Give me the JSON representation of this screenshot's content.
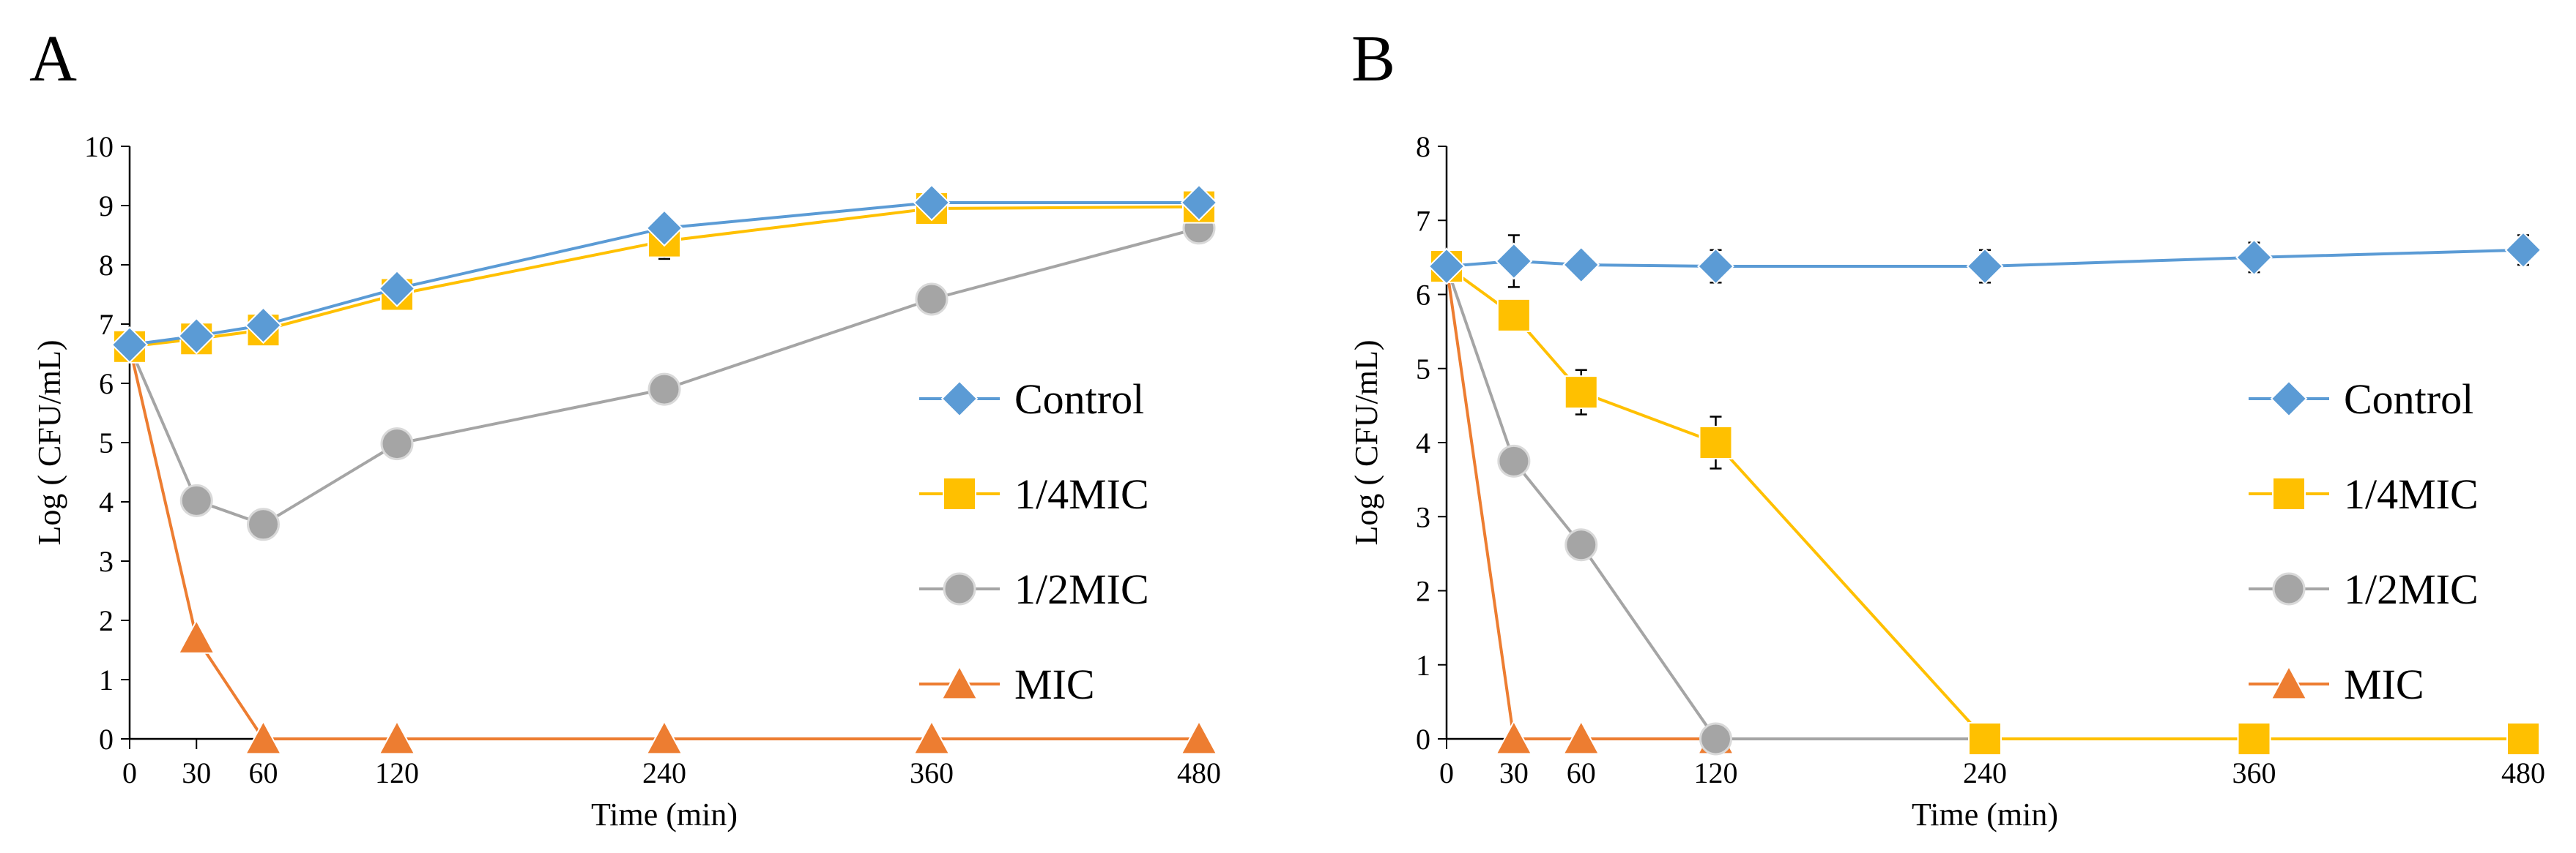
{
  "chart_data": [
    {
      "type": "line",
      "panel_label": "A",
      "xlabel": "Time (min)",
      "ylabel": "Log ( CFU/mL)",
      "x": [
        0,
        30,
        60,
        120,
        240,
        360,
        480
      ],
      "x_tick_labels": [
        "0",
        "30",
        "60",
        "120",
        "240",
        "360",
        "480"
      ],
      "xlim": [
        0,
        480
      ],
      "ylim": [
        0,
        10
      ],
      "y_ticks": [
        0,
        1,
        2,
        3,
        4,
        5,
        6,
        7,
        8,
        9,
        10
      ],
      "y_tick_labels": [
        "0",
        "1",
        "2",
        "3",
        "4",
        "5",
        "6",
        "7",
        "8",
        "9",
        "10"
      ],
      "grid": false,
      "legend_position": "right",
      "series": [
        {
          "name": "Control",
          "marker": "diamond",
          "color": "#5B9BD5",
          "values": [
            6.65,
            6.8,
            6.98,
            7.6,
            8.62,
            9.05,
            9.05
          ],
          "errors": [
            0.05,
            0.05,
            0.05,
            0.08,
            0.1,
            0.05,
            0.05
          ]
        },
        {
          "name": "1/4MIC",
          "marker": "square",
          "color": "#FFC000",
          "values": [
            6.62,
            6.75,
            6.9,
            7.5,
            8.4,
            8.95,
            8.98
          ],
          "errors": [
            0.05,
            0.05,
            0.1,
            0.1,
            0.3,
            0.08,
            0.08
          ]
        },
        {
          "name": "1/2MIC",
          "marker": "circle",
          "color": "#A5A5A5",
          "values": [
            6.62,
            4.02,
            3.62,
            4.98,
            5.9,
            7.42,
            8.62
          ],
          "errors": [
            0.05,
            0.05,
            0.1,
            0.08,
            0.12,
            0.2,
            0.1
          ]
        },
        {
          "name": "MIC",
          "marker": "triangle",
          "color": "#ED7D31",
          "values": [
            6.62,
            1.7,
            0,
            0,
            0,
            0,
            0
          ],
          "errors": [
            0.05,
            0.05,
            0,
            0,
            0,
            0,
            0
          ]
        }
      ]
    },
    {
      "type": "line",
      "panel_label": "B",
      "xlabel": "Time (min)",
      "ylabel": "Log ( CFU/mL)",
      "x": [
        0,
        30,
        60,
        120,
        240,
        360,
        480
      ],
      "x_tick_labels": [
        "0",
        "30",
        "60",
        "120",
        "240",
        "360",
        "480"
      ],
      "xlim": [
        0,
        480
      ],
      "ylim": [
        0,
        8
      ],
      "y_ticks": [
        0,
        1,
        2,
        3,
        4,
        5,
        6,
        7,
        8
      ],
      "y_tick_labels": [
        "0",
        "1",
        "2",
        "3",
        "4",
        "5",
        "6",
        "7",
        "8"
      ],
      "grid": false,
      "legend_position": "right",
      "series": [
        {
          "name": "Control",
          "marker": "diamond",
          "color": "#5B9BD5",
          "values": [
            6.38,
            6.45,
            6.4,
            6.38,
            6.38,
            6.5,
            6.6
          ],
          "errors": [
            0.05,
            0.35,
            0.05,
            0.22,
            0.22,
            0.2,
            0.2
          ]
        },
        {
          "name": "1/4MIC",
          "marker": "square",
          "color": "#FFC000",
          "values": [
            6.38,
            5.72,
            4.68,
            4.0,
            0,
            0,
            0
          ],
          "errors": [
            0.05,
            0.15,
            0.3,
            0.35,
            0,
            0,
            0
          ]
        },
        {
          "name": "1/2MIC",
          "marker": "circle",
          "color": "#A5A5A5",
          "values": [
            6.38,
            3.75,
            2.62,
            0,
            0,
            0,
            0
          ],
          "errors": [
            0.05,
            0.05,
            0.05,
            0,
            0,
            0,
            0
          ]
        },
        {
          "name": "MIC",
          "marker": "triangle",
          "color": "#ED7D31",
          "values": [
            6.38,
            0,
            0,
            0,
            0,
            0,
            0
          ],
          "errors": [
            0.05,
            0,
            0,
            0,
            0,
            0,
            0
          ]
        }
      ]
    }
  ]
}
